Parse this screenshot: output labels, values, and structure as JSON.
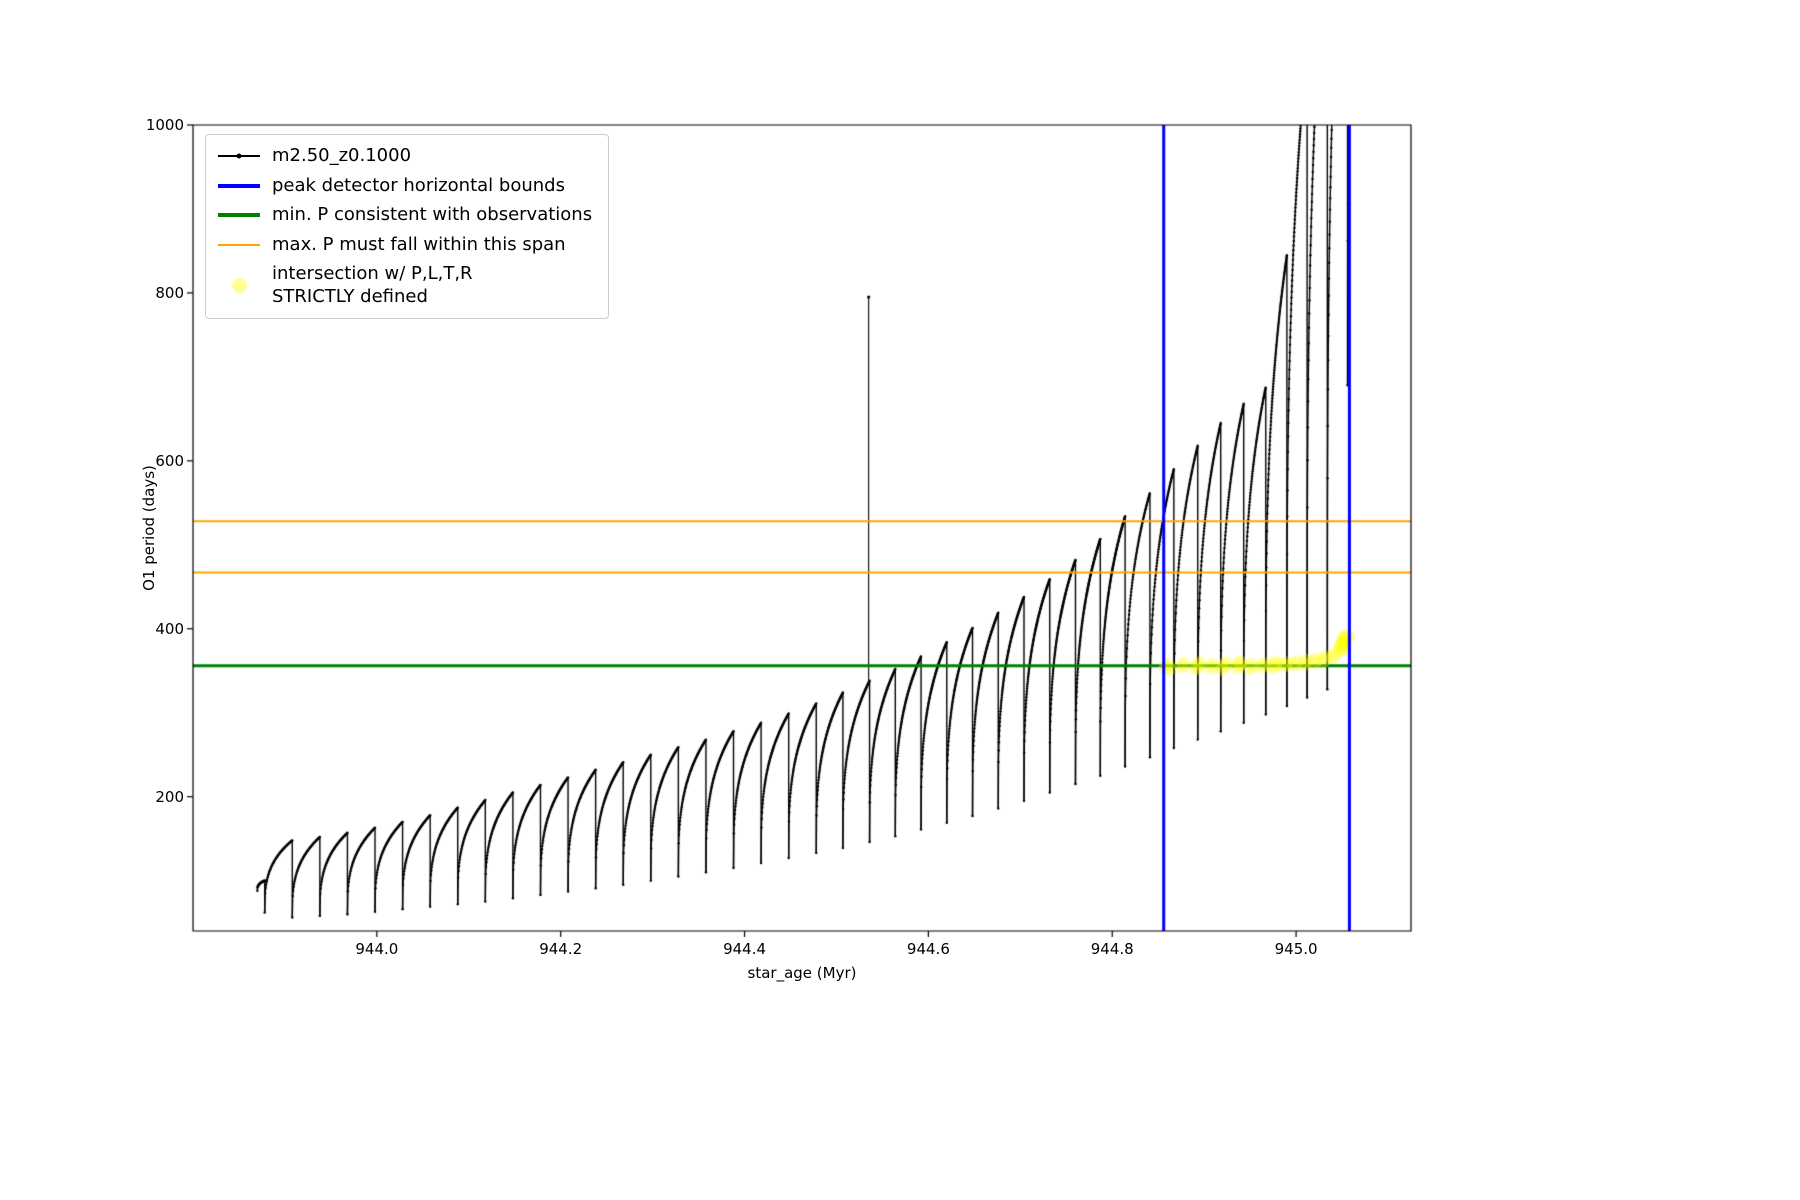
{
  "chart_data": {
    "type": "line",
    "title": "",
    "xlabel": "star_age (Myr)",
    "ylabel": "O1 period (days)",
    "xlim": [
      943.8,
      945.125
    ],
    "ylim": [
      40,
      1000
    ],
    "grid": false,
    "legend_position": "upper left",
    "xticks": [
      944.0,
      944.2,
      944.4,
      944.6,
      944.8,
      945.0
    ],
    "xtick_labels": [
      "944.0",
      "944.2",
      "944.4",
      "944.6",
      "944.8",
      "945.0"
    ],
    "yticks": [
      200,
      400,
      600,
      800,
      1000
    ],
    "ytick_labels": [
      "200",
      "400",
      "600",
      "800",
      "1000"
    ],
    "series": {
      "name": "m2.50_z0.1000",
      "color": "#000000",
      "marker": "point",
      "shape_exponent": 0.32,
      "pulses": [
        [
          943.87,
          943.878,
          88,
          100
        ],
        [
          943.878,
          943.908,
          62,
          148
        ],
        [
          943.908,
          943.938,
          56,
          152
        ],
        [
          943.938,
          943.968,
          58,
          157
        ],
        [
          943.968,
          943.998,
          60,
          163
        ],
        [
          943.998,
          944.028,
          63,
          170
        ],
        [
          944.028,
          944.058,
          66,
          178
        ],
        [
          944.058,
          944.088,
          69,
          187
        ],
        [
          944.088,
          944.118,
          72,
          196
        ],
        [
          944.118,
          944.148,
          75,
          205
        ],
        [
          944.148,
          944.178,
          79,
          214
        ],
        [
          944.178,
          944.208,
          83,
          223
        ],
        [
          944.208,
          944.238,
          87,
          232
        ],
        [
          944.238,
          944.268,
          91,
          241
        ],
        [
          944.268,
          944.298,
          95,
          250
        ],
        [
          944.298,
          944.328,
          100,
          259
        ],
        [
          944.328,
          944.358,
          105,
          268
        ],
        [
          944.358,
          944.388,
          110,
          278
        ],
        [
          944.388,
          944.418,
          115,
          288
        ],
        [
          944.418,
          944.448,
          121,
          299
        ],
        [
          944.448,
          944.478,
          127,
          311
        ],
        [
          944.478,
          944.507,
          133,
          324
        ],
        [
          944.507,
          944.536,
          139,
          338
        ],
        [
          944.536,
          944.564,
          146,
          352
        ],
        [
          944.564,
          944.592,
          153,
          367
        ],
        [
          944.592,
          944.62,
          161,
          384
        ],
        [
          944.62,
          944.648,
          169,
          401
        ],
        [
          944.648,
          944.676,
          177,
          419
        ],
        [
          944.676,
          944.704,
          186,
          438
        ],
        [
          944.704,
          944.732,
          195,
          459
        ],
        [
          944.732,
          944.76,
          205,
          482
        ],
        [
          944.76,
          944.787,
          215,
          507
        ],
        [
          944.787,
          944.814,
          225,
          534
        ],
        [
          944.814,
          944.841,
          236,
          562
        ],
        [
          944.841,
          944.867,
          247,
          590
        ],
        [
          944.867,
          944.893,
          258,
          618
        ],
        [
          944.893,
          944.918,
          268,
          645
        ],
        [
          944.918,
          944.943,
          278,
          668
        ],
        [
          944.943,
          944.967,
          288,
          688
        ],
        [
          944.967,
          944.99,
          298,
          845
        ],
        [
          944.99,
          945.012,
          308,
          1090
        ],
        [
          945.012,
          945.034,
          318,
          1260
        ],
        [
          945.034,
          945.056,
          328,
          1420
        ],
        [
          945.056,
          945.074,
          690,
          1420
        ]
      ],
      "spike": {
        "x": 944.535,
        "y0": 338,
        "y1": 795
      }
    },
    "peak_bounds": {
      "label": "peak detector horizontal bounds",
      "color": "#0000ff",
      "x": [
        944.856,
        945.058
      ],
      "linewidth": 3
    },
    "min_p_line": {
      "label": "min. P consistent with observations",
      "color": "#008000",
      "y": 356,
      "linewidth": 3
    },
    "max_p_span": {
      "label": "max. P must fall within this span",
      "color": "#ffa500",
      "y": [
        467,
        528
      ],
      "linewidth": 2
    },
    "intersection": {
      "label": "intersection w/ P,L,T,R\nSTRICTLY defined",
      "color": "#ffff00",
      "alpha": 0.3,
      "marker_radius": 7,
      "points": [
        [
          944.858,
          354
        ],
        [
          944.86,
          357
        ],
        [
          944.862,
          352
        ],
        [
          944.876,
          355
        ],
        [
          944.878,
          358
        ],
        [
          944.891,
          353
        ],
        [
          944.893,
          356
        ],
        [
          944.895,
          359
        ],
        [
          944.907,
          354
        ],
        [
          944.909,
          357
        ],
        [
          944.92,
          352
        ],
        [
          944.922,
          356
        ],
        [
          944.924,
          359
        ],
        [
          944.936,
          354
        ],
        [
          944.938,
          357
        ],
        [
          944.939,
          360
        ],
        [
          944.95,
          353
        ],
        [
          944.952,
          357
        ],
        [
          944.963,
          355
        ],
        [
          944.965,
          358
        ],
        [
          944.975,
          354
        ],
        [
          944.977,
          357
        ],
        [
          944.978,
          360
        ],
        [
          944.987,
          356
        ],
        [
          944.989,
          359
        ],
        [
          944.998,
          357
        ],
        [
          945.0,
          360
        ],
        [
          945.009,
          358
        ],
        [
          945.011,
          362
        ],
        [
          945.02,
          360
        ],
        [
          945.022,
          363
        ],
        [
          945.03,
          362
        ],
        [
          945.032,
          366
        ],
        [
          945.04,
          366
        ],
        [
          945.042,
          370
        ],
        [
          945.047,
          374
        ],
        [
          945.049,
          378
        ],
        [
          945.049,
          380
        ],
        [
          945.05,
          382
        ],
        [
          945.051,
          386
        ],
        [
          945.052,
          389
        ],
        [
          945.053,
          384
        ],
        [
          945.053,
          376
        ],
        [
          945.054,
          390
        ],
        [
          945.055,
          387
        ],
        [
          945.056,
          392
        ]
      ]
    }
  }
}
